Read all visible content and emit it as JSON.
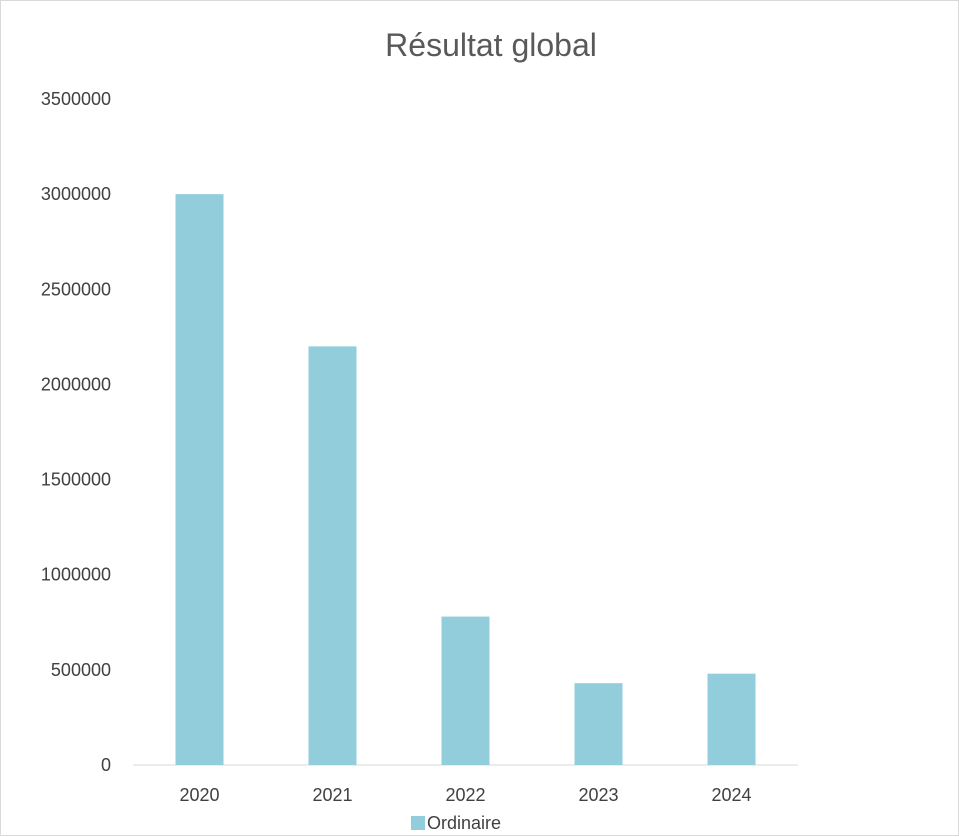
{
  "chart_data": {
    "type": "bar",
    "title": "Résultat global",
    "categories": [
      "2020",
      "2021",
      "2022",
      "2023",
      "2024"
    ],
    "series": [
      {
        "name": "Ordinaire",
        "color": "#92cddc",
        "values": [
          3000000,
          2200000,
          780000,
          430000,
          480000
        ]
      }
    ],
    "ylim": [
      0,
      3500000
    ],
    "yticks": [
      "0",
      "500000",
      "1000000",
      "1500000",
      "2000000",
      "2500000",
      "3000000",
      "3500000"
    ],
    "xlabel": "",
    "ylabel": "",
    "grid": false,
    "legend": "bottom"
  }
}
